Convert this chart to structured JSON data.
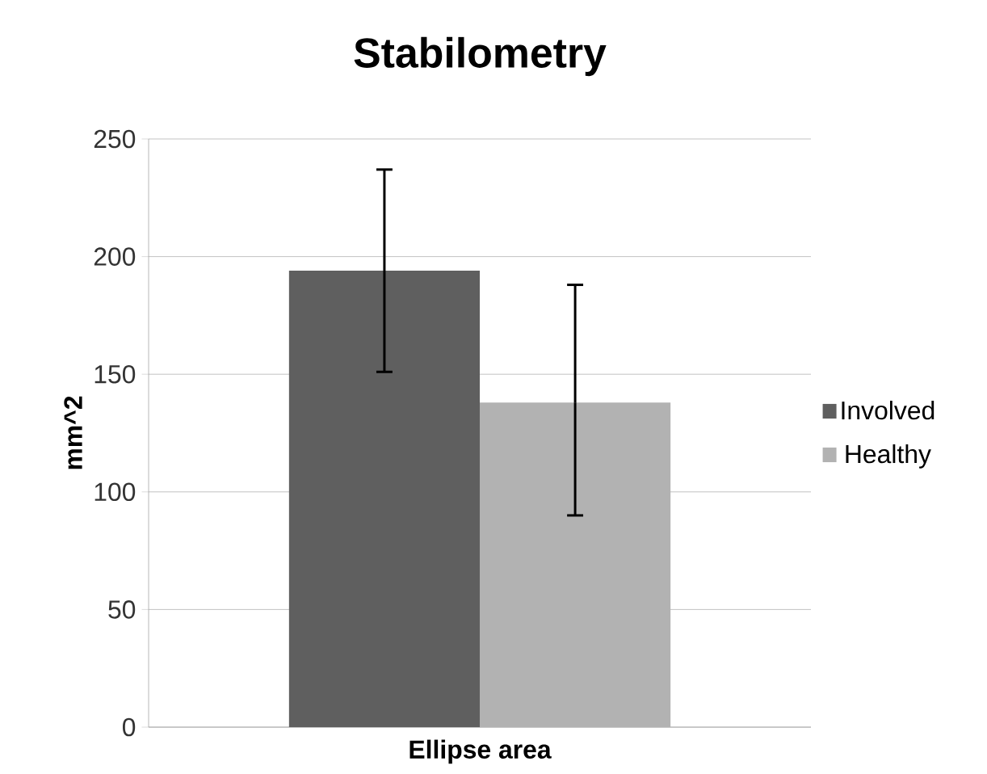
{
  "chart_data": {
    "type": "bar",
    "title": "Stabilometry",
    "ylabel": "mm^2",
    "categories": [
      "Ellipse area"
    ],
    "series": [
      {
        "name": "Involved",
        "color": "#5f5f5f",
        "values": [
          194
        ],
        "errors": [
          [
            151,
            237
          ]
        ]
      },
      {
        "name": "Healthy",
        "color": "#b2b2b2",
        "values": [
          138
        ],
        "errors": [
          [
            90,
            188
          ]
        ]
      }
    ],
    "ylim": [
      0,
      250
    ],
    "yticks": [
      0,
      50,
      100,
      150,
      200,
      250
    ],
    "grid": "y",
    "legend": "right"
  }
}
